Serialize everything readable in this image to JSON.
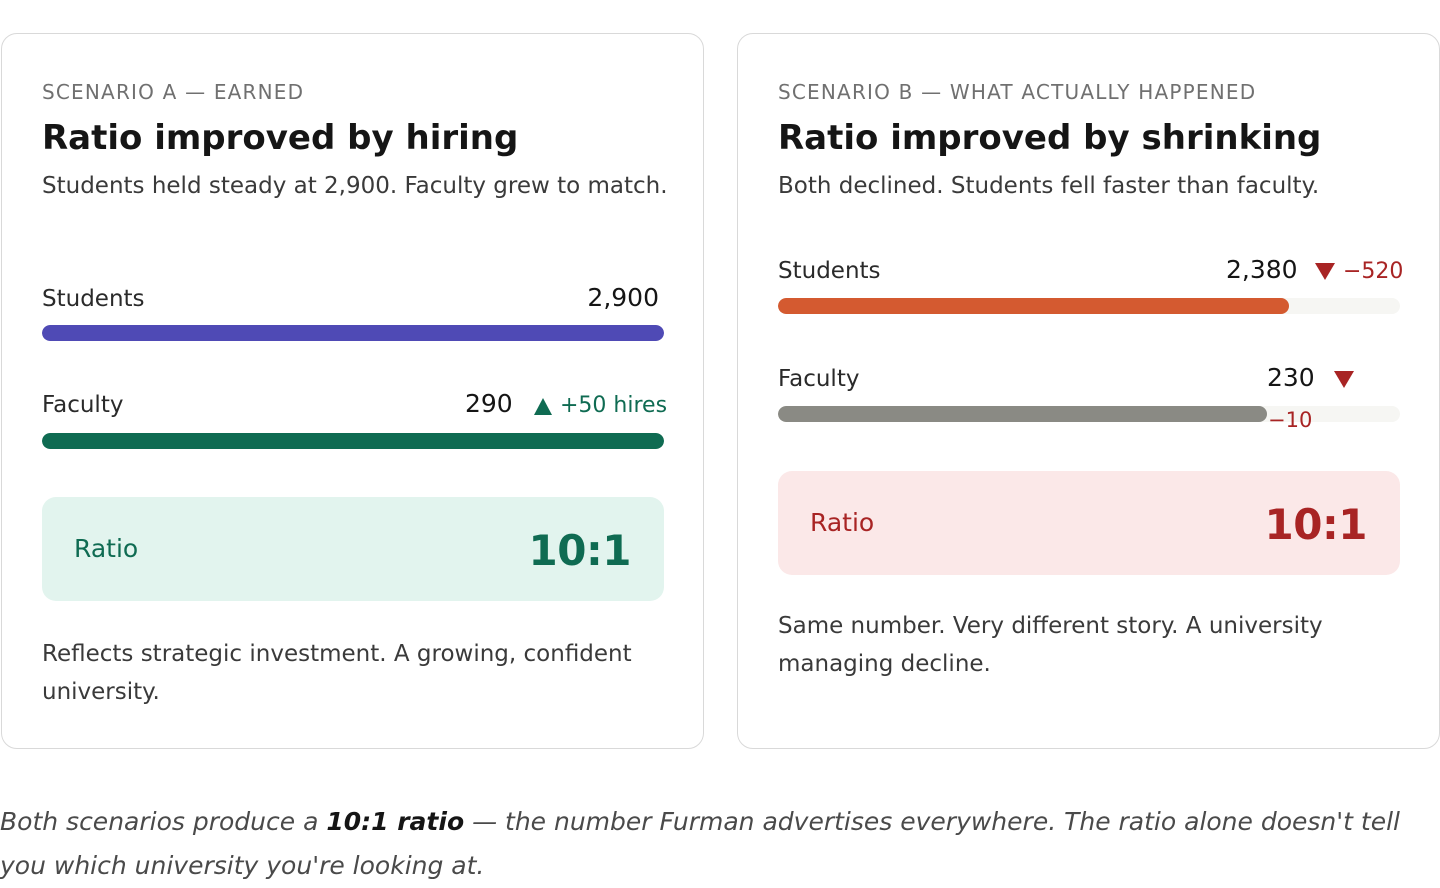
{
  "scenario_a": {
    "eyebrow": "SCENARIO A — EARNED",
    "title": "Ratio improved by hiring",
    "subtitle": "Students held steady at 2,900. Faculty grew to match.",
    "students": {
      "label": "Students",
      "value": "2,900",
      "fill_fraction": 1.0,
      "color": "#4f4ab5"
    },
    "faculty": {
      "label": "Faculty",
      "value": "290",
      "delta": "+50 hires",
      "fill_fraction": 1.0,
      "color": "#0f6b52"
    },
    "ratio": {
      "label": "Ratio",
      "value": "10:1",
      "bg": "#e2f4ee",
      "color": "#0f6b52"
    },
    "note": "Reflects strategic investment. A growing, confident university."
  },
  "scenario_b": {
    "eyebrow": "SCENARIO B — WHAT ACTUALLY HAPPENED",
    "title": "Ratio improved by shrinking",
    "subtitle": "Both declined. Students fell faster than faculty.",
    "students": {
      "label": "Students",
      "value": "2,380",
      "delta": "−520",
      "fill_fraction": 0.821,
      "color": "#d45a30"
    },
    "faculty": {
      "label": "Faculty",
      "value": "230",
      "delta": "−10",
      "fill_fraction": 0.786,
      "color": "#8a8a84"
    },
    "ratio": {
      "label": "Ratio",
      "value": "10:1",
      "bg": "#fbe8e8",
      "color": "#a82424"
    },
    "note": "Same number. Very different story. A university managing decline."
  },
  "caption": {
    "before": "Both scenarios produce a ",
    "emphasis": "10:1 ratio",
    "after": " — the number Furman advertises everywhere. The ratio alone doesn't tell you which university you're looking at."
  }
}
